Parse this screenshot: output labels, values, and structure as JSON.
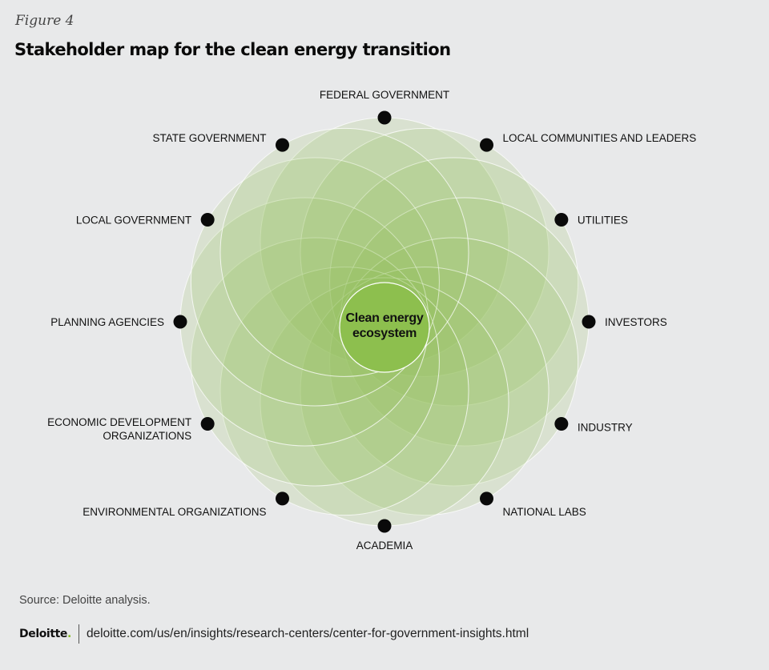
{
  "figure_label": "Figure 4",
  "title": "Stakeholder map for the clean energy transition",
  "diagram": {
    "center": [
      "Clean energy",
      "ecosystem"
    ],
    "stakeholders": [
      {
        "lines": [
          "FEDERAL GOVERNMENT"
        ],
        "side": "top"
      },
      {
        "lines": [
          "LOCAL COMMUNITIES AND LEADERS"
        ],
        "side": "right"
      },
      {
        "lines": [
          "UTILITIES"
        ],
        "side": "right"
      },
      {
        "lines": [
          "INVESTORS"
        ],
        "side": "right"
      },
      {
        "lines": [
          "INDUSTRY"
        ],
        "side": "right"
      },
      {
        "lines": [
          "NATIONAL LABS"
        ],
        "side": "right"
      },
      {
        "lines": [
          "ACADEMIA"
        ],
        "side": "bottom"
      },
      {
        "lines": [
          "ENVIRONMENTAL ORGANIZATIONS"
        ],
        "side": "left"
      },
      {
        "lines": [
          "ECONOMIC DEVELOPMENT",
          "ORGANIZATIONS"
        ],
        "side": "left"
      },
      {
        "lines": [
          "PLANNING AGENCIES"
        ],
        "side": "left"
      },
      {
        "lines": [
          "LOCAL GOVERNMENT"
        ],
        "side": "left"
      },
      {
        "lines": [
          "STATE GOVERNMENT"
        ],
        "side": "left"
      }
    ],
    "colors": {
      "petal_fill": "#8fbf55",
      "center_fill": "#8dbf4e",
      "node_dot": "#0a0a0a",
      "line": "#ffffff"
    }
  },
  "source": "Source: Deloitte analysis.",
  "footer": {
    "logo": "Deloitte",
    "logo_dot": ".",
    "url": "deloitte.com/us/en/insights/research-centers/center-for-government-insights.html"
  }
}
